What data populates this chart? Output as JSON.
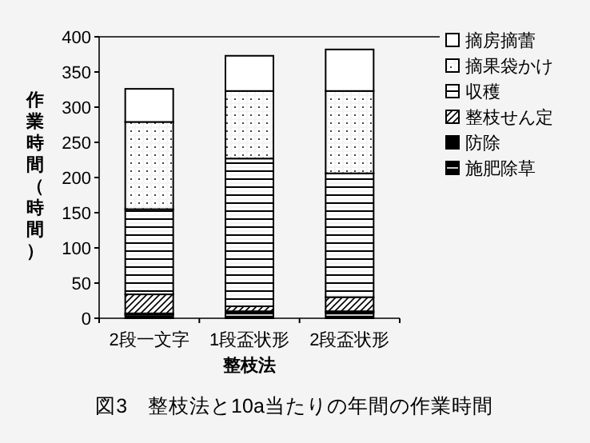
{
  "chart_data": {
    "type": "bar",
    "stacked": true,
    "categories": [
      "2段一文字",
      "1段盃状形",
      "2段盃状形"
    ],
    "xlabel": "整枝法",
    "ylabel": "作業時間（時間）",
    "ylim": [
      0,
      400
    ],
    "yticks": [
      0,
      50,
      100,
      150,
      200,
      250,
      300,
      350,
      400
    ],
    "legend": "right",
    "annotations": [
      "図3　整枝法と10a当たりの年間の作業時間"
    ],
    "series": [
      {
        "name": "施肥除草",
        "values": [
          5,
          8,
          8
        ]
      },
      {
        "name": "防除",
        "values": [
          2,
          2,
          2
        ]
      },
      {
        "name": "整枝せん定",
        "values": [
          27,
          7,
          20
        ]
      },
      {
        "name": "収穫",
        "values": [
          121,
          210,
          176
        ]
      },
      {
        "name": "摘果袋かけ",
        "values": [
          124,
          96,
          117
        ]
      },
      {
        "name": "摘房摘蕾",
        "values": [
          47,
          50,
          59
        ]
      }
    ]
  }
}
